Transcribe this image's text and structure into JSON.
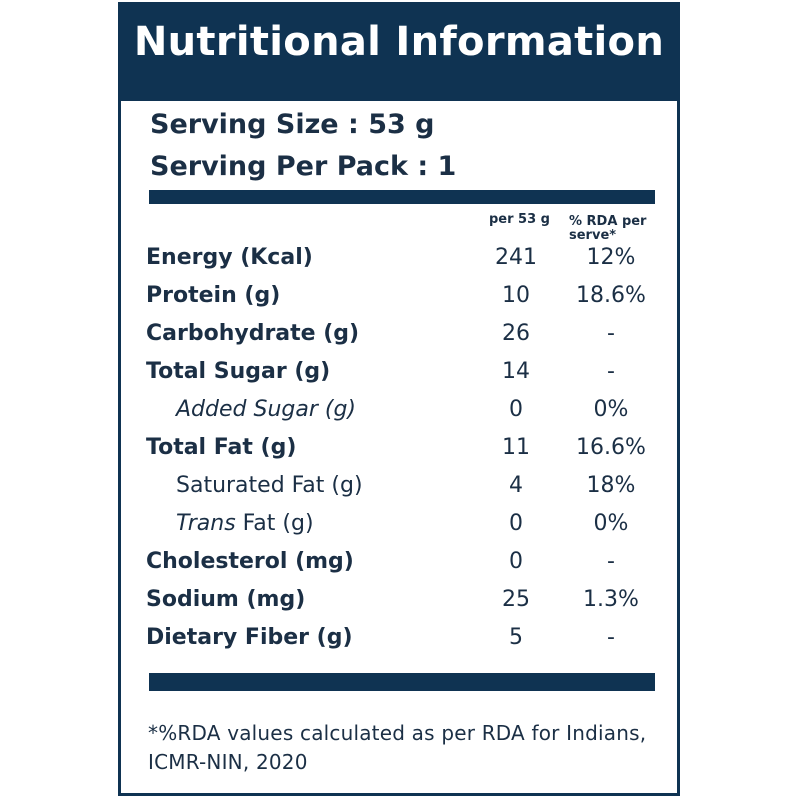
{
  "title": "Nutritional Information",
  "serving_size": "Serving Size : 53 g",
  "servings_per_pack": "Serving Per Pack : 1",
  "columns": {
    "per_serving": "per 53 g",
    "rda": "% RDA per serve*"
  },
  "nutrients": [
    {
      "name": "Energy (Kcal)",
      "value": "241",
      "rda": "12%"
    },
    {
      "name": "Protein (g)",
      "value": "10",
      "rda": "18.6%"
    },
    {
      "name": "Carbohydrate (g)",
      "value": "26",
      "rda": "-"
    },
    {
      "name": "Total Sugar (g)",
      "value": "14",
      "rda": "-"
    },
    {
      "name": "Added Sugar (g)",
      "value": "0",
      "rda": "0%"
    },
    {
      "name": "Total Fat (g)",
      "value": "11",
      "rda": "16.6%"
    },
    {
      "name": "Saturated Fat (g)",
      "value": "4",
      "rda": "18%"
    },
    {
      "name": "Trans Fat (g)",
      "value": "0",
      "rda": "0%"
    },
    {
      "name": "Cholesterol (mg)",
      "value": "0",
      "rda": "-"
    },
    {
      "name": "Sodium (mg)",
      "value": "25",
      "rda": "1.3%"
    },
    {
      "name": "Dietary Fiber (g)",
      "value": "5",
      "rda": "-"
    }
  ],
  "footnote": "*%RDA values calculated as per RDA for Indians, ICMR-NIN, 2020",
  "colors": {
    "header_bg": "#0f3352",
    "text": "#1b2f45",
    "background": "#ffffff"
  }
}
